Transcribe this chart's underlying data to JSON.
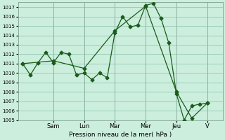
{
  "xlabel": "Pression niveau de la mer( hPa )",
  "background_color": "#cceedd",
  "grid_color": "#99ccbb",
  "line_color": "#1a5c1a",
  "ylim": [
    1005,
    1017.5
  ],
  "yticks": [
    1005,
    1006,
    1007,
    1008,
    1009,
    1010,
    1011,
    1012,
    1013,
    1014,
    1015,
    1016,
    1017
  ],
  "day_labels": [
    "Sam",
    "Lun",
    "Mar",
    "Mer",
    "Jeu",
    "V"
  ],
  "day_positions": [
    2,
    4,
    6,
    8,
    10,
    12
  ],
  "xlim": [
    -0.3,
    13.0
  ],
  "line1_x": [
    0,
    0.5,
    1.0,
    1.5,
    2.0,
    2.5,
    3.0,
    3.5,
    4.0,
    4.5,
    5.0,
    5.5,
    6.0,
    6.5,
    7.0,
    7.5,
    8.0,
    8.5,
    9.0,
    9.5,
    10.0,
    10.5,
    11.0,
    11.5,
    12.0
  ],
  "line1_y": [
    1011.0,
    1009.8,
    1011.1,
    1012.2,
    1011.1,
    1012.2,
    1012.0,
    1009.8,
    1010.0,
    1009.3,
    1010.0,
    1009.5,
    1014.3,
    1016.0,
    1014.9,
    1015.1,
    1017.2,
    1017.4,
    1015.8,
    1013.2,
    1007.8,
    1005.0,
    1006.5,
    1006.7,
    1006.8
  ],
  "line2_x": [
    0,
    2.0,
    4.0,
    6.0,
    8.0,
    10.0,
    11.0,
    12.0
  ],
  "line2_y": [
    1011.0,
    1011.3,
    1010.5,
    1014.5,
    1017.1,
    1008.0,
    1005.2,
    1006.8
  ]
}
